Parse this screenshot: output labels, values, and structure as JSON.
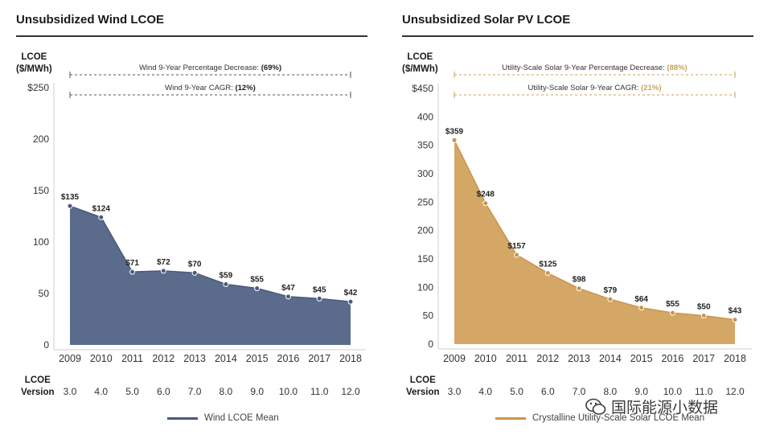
{
  "charts": {
    "wind": {
      "title": "Unsubsidized Wind LCOE",
      "unit_line1": "LCOE",
      "unit_line2": "($/MWh)",
      "version_line1": "LCOE",
      "version_line2": "Version",
      "legend": "Wind LCOE Mean",
      "annotation1": {
        "label": "Wind 9-Year Percentage Decrease:",
        "value": "(69%)"
      },
      "annotation2": {
        "label": "Wind 9-Year CAGR:",
        "value": "(12%)"
      },
      "y_ticks": [
        "$250",
        "200",
        "150",
        "100",
        "50",
        "0"
      ],
      "fill_color": "#5a6b8c",
      "line_color": "#4a5a7a",
      "annotation_color": "#555555"
    },
    "solar": {
      "title": "Unsubsidized Solar PV LCOE",
      "unit_line1": "LCOE",
      "unit_line2": "($/MWh)",
      "version_line1": "LCOE",
      "version_line2": "Version",
      "legend": "Crystalline Utility-Scale Solar LCOE Mean",
      "annotation1": {
        "label": "Utility-Scale Solar 9-Year Percentage Decrease:",
        "value": "(88%)"
      },
      "annotation2": {
        "label": "Utility-Scale Solar 9-Year CAGR:",
        "value": "(21%)"
      },
      "y_ticks": [
        "$450",
        "400",
        "350",
        "300",
        "250",
        "200",
        "150",
        "100",
        "50",
        "0"
      ],
      "fill_color": "#d4a766",
      "line_color": "#c9954a",
      "annotation_color": "#c9a35a"
    }
  },
  "watermark": "国际能源小数据",
  "chart_data": [
    {
      "type": "area",
      "title": "Unsubsidized Wind LCOE",
      "ylabel": "LCOE ($/MWh)",
      "ylim": [
        0,
        250
      ],
      "categories": [
        "2009",
        "2010",
        "2011",
        "2012",
        "2013",
        "2014",
        "2015",
        "2016",
        "2017",
        "2018"
      ],
      "versions": [
        "3.0",
        "4.0",
        "5.0",
        "6.0",
        "7.0",
        "8.0",
        "9.0",
        "10.0",
        "11.0",
        "12.0"
      ],
      "series": [
        {
          "name": "Wind LCOE Mean",
          "values": [
            135,
            124,
            71,
            72,
            70,
            59,
            55,
            47,
            45,
            42
          ]
        }
      ],
      "data_labels": [
        "$135",
        "$124",
        "$71",
        "$72",
        "$70",
        "$59",
        "$55",
        "$47",
        "$45",
        "$42"
      ],
      "grid": false,
      "legend_position": "bottom"
    },
    {
      "type": "area",
      "title": "Unsubsidized Solar PV LCOE",
      "ylabel": "LCOE ($/MWh)",
      "ylim": [
        0,
        450
      ],
      "categories": [
        "2009",
        "2010",
        "2011",
        "2012",
        "2013",
        "2014",
        "2015",
        "2016",
        "2017",
        "2018"
      ],
      "versions": [
        "3.0",
        "4.0",
        "5.0",
        "6.0",
        "7.0",
        "8.0",
        "9.0",
        "10.0",
        "11.0",
        "12.0"
      ],
      "series": [
        {
          "name": "Crystalline Utility-Scale Solar LCOE Mean",
          "values": [
            359,
            248,
            157,
            125,
            98,
            79,
            64,
            55,
            50,
            43
          ]
        }
      ],
      "data_labels": [
        "$359",
        "$248",
        "$157",
        "$125",
        "$98",
        "$79",
        "$64",
        "$55",
        "$50",
        "$43"
      ],
      "grid": false,
      "legend_position": "bottom"
    }
  ]
}
